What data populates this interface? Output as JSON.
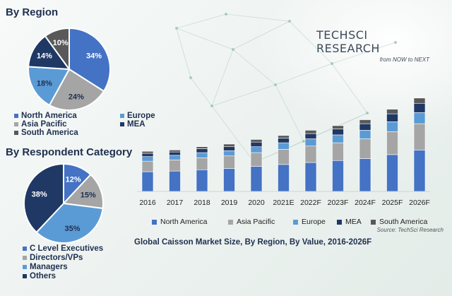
{
  "colors": {
    "north_america": "#4472c4",
    "asia_pacific": "#a5a5a5",
    "europe": "#5b9bd5",
    "mea": "#1f3864",
    "south_america": "#595959"
  },
  "logo": {
    "brand": "TECHSCI RESEARCH",
    "tagline": "from NOW to NEXT"
  },
  "region_pie": {
    "title": "By Region",
    "slices": [
      {
        "name": "North America",
        "value": 34,
        "label": "34%",
        "color": "#4472c4"
      },
      {
        "name": "Asia Pacific",
        "value": 24,
        "label": "24%",
        "color": "#a5a5a5"
      },
      {
        "name": "Europe",
        "value": 18,
        "label": "18%",
        "color": "#5b9bd5"
      },
      {
        "name": "MEA",
        "value": 14,
        "label": "14%",
        "color": "#1f3864"
      },
      {
        "name": "South America",
        "value": 10,
        "label": "10%",
        "color": "#595959"
      }
    ],
    "legend": [
      "North America",
      "Europe",
      "Asia Pacific",
      "MEA",
      "South America"
    ]
  },
  "respondent_pie": {
    "title": "By Respondent Category",
    "slices": [
      {
        "name": "C Level Executives",
        "value": 12,
        "label": "12%",
        "color": "#4472c4"
      },
      {
        "name": "Directors/VPs",
        "value": 15,
        "label": "15%",
        "color": "#a5a5a5"
      },
      {
        "name": "Managers",
        "value": 35,
        "label": "35%",
        "color": "#5b9bd5"
      },
      {
        "name": "Others",
        "value": 38,
        "label": "38%",
        "color": "#1f3864"
      }
    ],
    "legend": [
      "C Level Executives",
      "Directors/VPs",
      "Managers",
      "Others"
    ]
  },
  "chart_data": {
    "type": "bar",
    "stacked": true,
    "categories": [
      "2016",
      "2017",
      "2018",
      "2019",
      "2020",
      "2021E",
      "2022F",
      "2023F",
      "2024F",
      "2025F",
      "2026F"
    ],
    "series": [
      {
        "name": "North America",
        "values": [
          30,
          31,
          33,
          35,
          38,
          41,
          44,
          47,
          50,
          56,
          63
        ]
      },
      {
        "name": "Asia Pacific",
        "values": [
          16,
          17,
          18,
          19,
          21,
          23,
          25,
          27,
          30,
          35,
          40
        ]
      },
      {
        "name": "Europe",
        "values": [
          7,
          7,
          8,
          8,
          9,
          10,
          11,
          12,
          13,
          15,
          17
        ]
      },
      {
        "name": "MEA",
        "values": [
          5,
          5,
          6,
          6,
          7,
          7,
          8,
          9,
          10,
          12,
          14
        ]
      },
      {
        "name": "South America",
        "values": [
          3,
          3,
          3,
          4,
          4,
          4,
          5,
          5,
          6,
          7,
          8
        ]
      }
    ],
    "title": "Global Caisson Market Size, By Region, By Value, 2016-2026F",
    "source": "Source: TechSci Research",
    "xlabel": "",
    "ylabel": "",
    "ylim": [
      0,
      145
    ],
    "grid": false,
    "legend_position": "bottom"
  }
}
